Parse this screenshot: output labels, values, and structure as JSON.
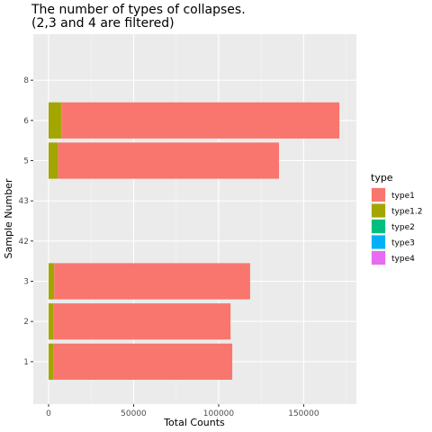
{
  "chart_data": {
    "type": "bar",
    "orientation": "horizontal",
    "stacked": true,
    "title": "The number of types of collapses.",
    "subtitle": "(2,3 and 4 are filtered)",
    "xlabel": "Total Counts",
    "ylabel": "Sample Number",
    "xlim": [
      -9000,
      181000
    ],
    "x_ticks": [
      0,
      50000,
      100000,
      150000
    ],
    "x_tick_labels": [
      "0",
      "50000",
      "100000",
      "150000"
    ],
    "categories": [
      "1",
      "2",
      "3",
      "42",
      "43",
      "5",
      "6",
      "8"
    ],
    "grid": true,
    "legend_position": "right",
    "legend_title": "type",
    "series": [
      {
        "name": "type1.2",
        "color": "#A3A500",
        "values": [
          2800,
          2800,
          3300,
          0,
          0,
          5500,
          7500,
          0
        ]
      },
      {
        "name": "type1",
        "color": "#F8766D",
        "values": [
          105200,
          104200,
          115200,
          0,
          0,
          130000,
          163500,
          0
        ]
      }
    ],
    "legend_items": [
      {
        "name": "type1",
        "color": "#F8766D"
      },
      {
        "name": "type1.2",
        "color": "#A3A500"
      },
      {
        "name": "type2",
        "color": "#00BF7D"
      },
      {
        "name": "type3",
        "color": "#00B0F6"
      },
      {
        "name": "type4",
        "color": "#E76BF3"
      }
    ]
  }
}
